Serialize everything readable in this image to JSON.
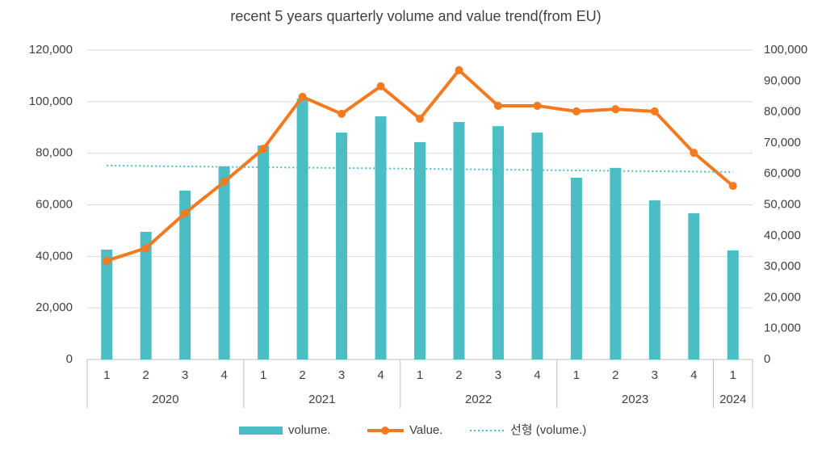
{
  "chart_data": {
    "type": "combo",
    "title": "recent 5 years quarterly volume and value trend(from EU)",
    "groups": [
      {
        "name": "2020",
        "categories": [
          "1",
          "2",
          "3",
          "4"
        ]
      },
      {
        "name": "2021",
        "categories": [
          "1",
          "2",
          "3",
          "4"
        ]
      },
      {
        "name": "2022",
        "categories": [
          "1",
          "2",
          "3",
          "4"
        ]
      },
      {
        "name": "2023",
        "categories": [
          "1",
          "2",
          "3",
          "4"
        ]
      },
      {
        "name": "2024",
        "categories": [
          "1"
        ]
      }
    ],
    "ylim": [
      0,
      120000
    ],
    "yticks": [
      0,
      {
        "value": 20000,
        "label": "20,000"
      },
      {
        "value": 40000,
        "label": "40,000"
      },
      {
        "value": 60000,
        "label": "60,000"
      },
      {
        "value": 80000,
        "label": "80,000"
      },
      {
        "value": 100000,
        "label": "100,000"
      },
      {
        "value": 120000,
        "label": "120,000"
      }
    ],
    "y2lim": [
      0,
      100000
    ],
    "y2ticks": [
      0,
      {
        "value": 10000,
        "label": "10,000"
      },
      {
        "value": 20000,
        "label": "20,000"
      },
      {
        "value": 30000,
        "label": "30,000"
      },
      {
        "value": 40000,
        "label": "40,000"
      },
      {
        "value": 50000,
        "label": "50,000"
      },
      {
        "value": 60000,
        "label": "60,000"
      },
      {
        "value": 70000,
        "label": "70,000"
      },
      {
        "value": 80000,
        "label": "80,000"
      },
      {
        "value": 90000,
        "label": "90,000"
      },
      {
        "value": 100000,
        "label": "100,000"
      }
    ],
    "grid": true,
    "legend": "bottom",
    "series": [
      {
        "name": "volume.",
        "type": "bar",
        "color": "#4bbec5",
        "values": [
          42600,
          49500,
          65500,
          74900,
          83000,
          101200,
          88000,
          94300,
          84300,
          92100,
          90500,
          88000,
          70500,
          74300,
          61700,
          56700,
          42300
        ]
      },
      {
        "name": "Value.",
        "type": "line",
        "axis": "y2",
        "color": "#f47a20",
        "values": [
          31900,
          36000,
          47300,
          57400,
          68100,
          84900,
          79400,
          88300,
          77800,
          93500,
          82000,
          82000,
          80200,
          80900,
          80200,
          66800,
          56100
        ]
      },
      {
        "name": "선형 (volume.)",
        "type": "trend",
        "color": "#4bbec5",
        "values": [
          75200,
          75040,
          74890,
          74730,
          74580,
          74420,
          74260,
          74110,
          73950,
          73790,
          73640,
          73480,
          73330,
          73170,
          73010,
          72860,
          72700
        ]
      }
    ]
  }
}
